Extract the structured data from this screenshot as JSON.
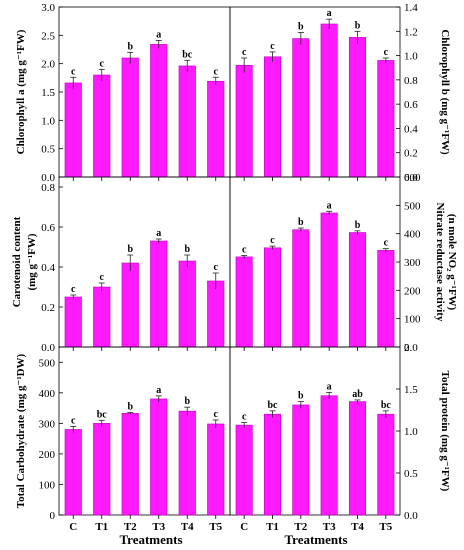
{
  "figure": {
    "bar_color": "#ff19ff",
    "bar_edge_color": "#c000c0",
    "x_axis_title_left": "Treatments",
    "x_axis_title_right": "Treatments"
  },
  "chart_data": [
    {
      "id": "chl-a",
      "type": "bar",
      "categories": [
        "C",
        "T1",
        "T2",
        "T3",
        "T4",
        "T5"
      ],
      "values": [
        1.66,
        1.8,
        2.1,
        2.34,
        1.96,
        1.69
      ],
      "errors": [
        0.1,
        0.1,
        0.1,
        0.07,
        0.1,
        0.07
      ],
      "letters": [
        "c",
        "c",
        "b",
        "a",
        "bc",
        "c"
      ],
      "ylabel": "Chlorophyll a (mg g⁻¹FW)",
      "ylim": [
        0,
        3.0
      ],
      "yticks": [
        "0.0",
        "0.5",
        "1.0",
        "1.5",
        "2.0",
        "2.5",
        "3.0"
      ],
      "xticks_shown": false
    },
    {
      "id": "chl-b",
      "type": "bar",
      "categories": [
        "C",
        "T1",
        "T2",
        "T3",
        "T4",
        "T5"
      ],
      "values": [
        0.92,
        0.99,
        1.14,
        1.26,
        1.15,
        0.96
      ],
      "errors": [
        0.06,
        0.04,
        0.05,
        0.04,
        0.05,
        0.02
      ],
      "letters": [
        "c",
        "c",
        "b",
        "a",
        "b",
        "c"
      ],
      "ylabel": "Chlorophyll b (mg g⁻¹FW)",
      "ylim": [
        0,
        1.4
      ],
      "yticks": [
        "0.0",
        "0.2",
        "0.4",
        "0.6",
        "0.8",
        "1.0",
        "1.2",
        "1.4"
      ],
      "xticks_shown": false
    },
    {
      "id": "carotenoid",
      "type": "bar",
      "categories": [
        "C",
        "T1",
        "T2",
        "T3",
        "T4",
        "T5"
      ],
      "values": [
        0.25,
        0.3,
        0.42,
        0.53,
        0.43,
        0.33
      ],
      "errors": [
        0.01,
        0.02,
        0.04,
        0.01,
        0.03,
        0.04
      ],
      "letters": [
        "c",
        "c",
        "b",
        "a",
        "b",
        "c"
      ],
      "ylabel": "Carotenoid content",
      "ylabel2": "(mg g⁻¹FW)",
      "ylim": [
        0,
        0.85
      ],
      "yticks": [
        "0.0",
        "0.2",
        "0.4",
        "0.6",
        "0.8"
      ],
      "ytick_values": [
        0,
        0.2,
        0.4,
        0.6,
        0.8
      ],
      "xticks_shown": false
    },
    {
      "id": "nitrate-reductase",
      "type": "bar",
      "categories": [
        "C",
        "T1",
        "T2",
        "T3",
        "T4",
        "T5"
      ],
      "values": [
        318,
        350,
        414,
        473,
        404,
        341
      ],
      "errors": [
        5,
        6,
        6,
        6,
        6,
        6
      ],
      "letters": [
        "c",
        "c",
        "b",
        "a",
        "b",
        "c"
      ],
      "ylabel": "Nitrate reductase activity",
      "ylabel2": "(n mole NO₂ g⁻¹FW)",
      "ylim": [
        0,
        600
      ],
      "yticks": [
        "0",
        "100",
        "200",
        "300",
        "400",
        "500",
        "600"
      ],
      "xticks_shown": false
    },
    {
      "id": "carbohydrate",
      "type": "bar",
      "categories": [
        "C",
        "T1",
        "T2",
        "T3",
        "T4",
        "T5"
      ],
      "values": [
        280,
        300,
        333,
        380,
        340,
        298
      ],
      "errors": [
        10,
        10,
        3,
        10,
        13,
        13
      ],
      "letters": [
        "c",
        "bc",
        "b",
        "a",
        "b",
        "c"
      ],
      "ylabel": "Total Carbohydrate (mg g⁻¹DW)",
      "ylim": [
        0,
        550
      ],
      "yticks": [
        "0",
        "100",
        "200",
        "300",
        "400",
        "500"
      ],
      "ytick_values": [
        0,
        100,
        200,
        300,
        400,
        500
      ],
      "xticks_shown": true
    },
    {
      "id": "protein",
      "type": "bar",
      "categories": [
        "C",
        "T1",
        "T2",
        "T3",
        "T4",
        "T5"
      ],
      "values": [
        1.07,
        1.2,
        1.31,
        1.42,
        1.35,
        1.2
      ],
      "errors": [
        0.03,
        0.04,
        0.04,
        0.04,
        0.02,
        0.04
      ],
      "letters": [
        "c",
        "bc",
        "b",
        "a",
        "ab",
        "bc"
      ],
      "ylabel": "Total protein (mg g⁻¹FW)",
      "ylim": [
        0,
        2.0
      ],
      "yticks": [
        "0.0",
        "0.5",
        "1.0",
        "1.5",
        "2.0"
      ],
      "xticks_shown": true
    }
  ]
}
